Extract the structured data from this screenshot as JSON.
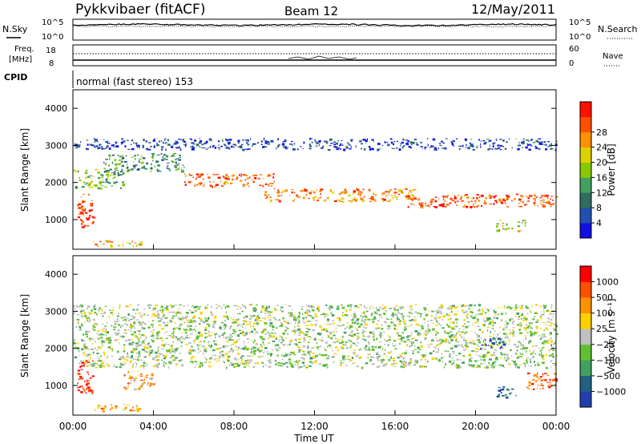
{
  "header": {
    "station": "Pykkvibaer (fitACF)",
    "beam": "Beam 12",
    "date": "12/May/2011"
  },
  "sky_panel": {
    "left_label": "N.Sky",
    "right_label": "N.Search",
    "left_ticks": [
      "10^5",
      "10^0"
    ],
    "right_ticks": [
      "10^5",
      "10^0"
    ]
  },
  "freq_panel": {
    "left_label_top": "Freq.",
    "left_label_bottom": "[MHz]",
    "right_label": "Nave",
    "left_ticks": [
      "18",
      "8"
    ],
    "right_ticks": [
      "60",
      "0"
    ]
  },
  "cpid": {
    "label": "CPID",
    "text": "normal (fast stereo) 153"
  },
  "chart_data": [
    {
      "type": "heatmap",
      "name": "power",
      "ylabel": "Slant Range [km]",
      "ylim": [
        200,
        4500
      ],
      "yticks": [
        1000,
        2000,
        3000,
        4000
      ],
      "colorbar_label": "Power [dB]",
      "colorbar_ticks": [
        4,
        8,
        12,
        16,
        20,
        24,
        28
      ],
      "colorbar_colors": [
        "#1010e0",
        "#2050b0",
        "#306c60",
        "#3fa060",
        "#88c800",
        "#e0d000",
        "#ff9000",
        "#ff5000",
        "#ff1000"
      ],
      "bands": [
        {
          "t0": 0.0,
          "t1": 2.5,
          "r0": 1850,
          "r1": 2400,
          "level": 0.45
        },
        {
          "t0": 1.5,
          "t1": 5.5,
          "r0": 2300,
          "r1": 2800,
          "level": 0.35
        },
        {
          "t0": 5.5,
          "t1": 10.0,
          "r0": 1900,
          "r1": 2250,
          "level": 0.8
        },
        {
          "t0": 9.5,
          "t1": 17.0,
          "r0": 1500,
          "r1": 1850,
          "level": 0.75
        },
        {
          "t0": 16.5,
          "t1": 24.0,
          "r0": 1350,
          "r1": 1700,
          "level": 0.85
        },
        {
          "t0": 0.0,
          "t1": 24.0,
          "r0": 2900,
          "r1": 3200,
          "level": 0.15
        },
        {
          "t0": 0.2,
          "t1": 1.0,
          "r0": 800,
          "r1": 1700,
          "level": 0.9
        },
        {
          "t0": 1.0,
          "t1": 3.5,
          "r0": 300,
          "r1": 450,
          "level": 0.7
        },
        {
          "t0": 21.0,
          "t1": 22.5,
          "r0": 700,
          "r1": 1000,
          "level": 0.55
        }
      ]
    },
    {
      "type": "heatmap",
      "name": "velocity",
      "ylabel": "Slant Range [km]",
      "ylim": [
        200,
        4500
      ],
      "yticks": [
        1000,
        2000,
        3000,
        4000
      ],
      "colorbar_label": "Velocity [m s⁻¹]",
      "colorbar_ticks": [
        "1000",
        "500",
        "100",
        "25",
        "−25",
        "−100",
        "−500",
        "−1000"
      ],
      "colorbar_colors": [
        "#2040b0",
        "#206080",
        "#40a060",
        "#60c030",
        "#c0c0c0",
        "#ffd000",
        "#ff9000",
        "#ff5000",
        "#ff0000"
      ],
      "bands": [
        {
          "t0": 0.0,
          "t1": 24.0,
          "r0": 1500,
          "r1": 3200,
          "level": 0.45
        },
        {
          "t0": 0.2,
          "t1": 1.0,
          "r0": 800,
          "r1": 1700,
          "level": 0.95
        },
        {
          "t0": 1.0,
          "t1": 3.5,
          "r0": 300,
          "r1": 500,
          "level": 0.75
        },
        {
          "t0": 2.5,
          "t1": 4.0,
          "r0": 900,
          "r1": 1400,
          "level": 0.7
        },
        {
          "t0": 21.0,
          "t1": 22.0,
          "r0": 700,
          "r1": 1000,
          "level": 0.1
        },
        {
          "t0": 22.5,
          "t1": 24.0,
          "r0": 900,
          "r1": 1400,
          "level": 0.85
        },
        {
          "t0": 20.2,
          "t1": 21.5,
          "r0": 2000,
          "r1": 2300,
          "level": 0.15
        }
      ]
    }
  ],
  "xaxis": {
    "label": "Time UT",
    "ticks": [
      "00:00",
      "04:00",
      "08:00",
      "12:00",
      "16:00",
      "20:00",
      "00:00"
    ]
  }
}
